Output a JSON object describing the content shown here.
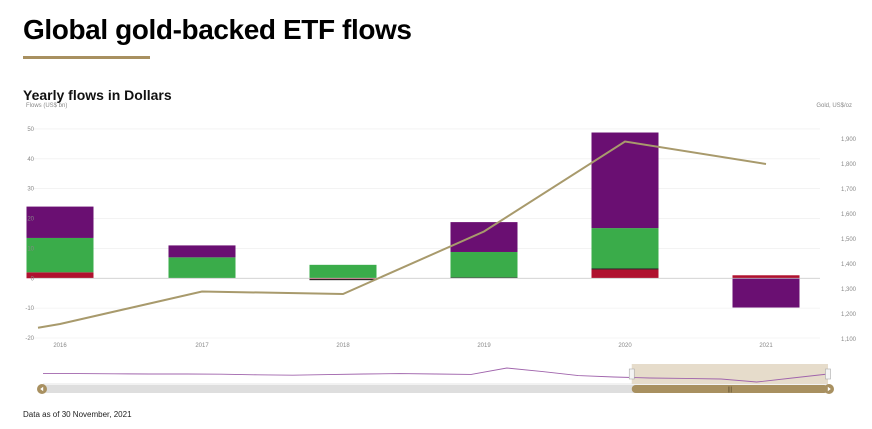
{
  "page": {
    "title": "Global gold-backed ETF flows",
    "subtitle": "Yearly flows in Dollars",
    "left_unit": "Flows (US$ bn)",
    "right_unit": "Gold, US$/oz",
    "footnote": "Data as of 30 November, 2021",
    "accent_color": "#a89060",
    "navigator_handle_label": "|||"
  },
  "chart_data": {
    "type": "bar",
    "stacked": true,
    "categories": [
      "2016",
      "2017",
      "2018",
      "2019",
      "2020",
      "2021"
    ],
    "series": [
      {
        "color": "#b0112f",
        "values": [
          2.0,
          0.0,
          -0.3,
          0.0,
          3.0,
          1.0
        ]
      },
      {
        "color": "#111111",
        "values": [
          0.0,
          0.0,
          -0.3,
          0.3,
          0.3,
          0.0
        ]
      },
      {
        "color": "#3aac4a",
        "values": [
          11.5,
          7.0,
          4.5,
          8.5,
          13.5,
          0.0
        ]
      },
      {
        "color": "#6a0f72",
        "values": [
          10.5,
          4.0,
          0.0,
          10.0,
          32.0,
          -9.8
        ]
      }
    ],
    "line": {
      "color": "#a89a6c",
      "x": [
        "2016 start",
        "2016",
        "2017",
        "2018",
        "2019",
        "2020",
        "2021"
      ],
      "values": [
        1145,
        1160,
        1290,
        1280,
        1530,
        1890,
        1800
      ]
    },
    "y_left": {
      "min": -20,
      "max": 55,
      "ticks": [
        -20,
        -10,
        0,
        10,
        20,
        30,
        40,
        50
      ]
    },
    "y_right": {
      "min": 1100,
      "max": 1900,
      "ticks": [
        1100,
        1200,
        1300,
        1400,
        1500,
        1600,
        1700,
        1800,
        1900
      ],
      "tick_labels": [
        "1,100",
        "1,200",
        "1,300",
        "1,400",
        "1,500",
        "1,600",
        "1,700",
        "1,800",
        "1,900"
      ]
    },
    "grid": true,
    "legend": "none"
  },
  "navigator": {
    "selected_from": 0.75,
    "selected_to": 1.0,
    "trend": [
      0.52,
      0.52,
      0.51,
      0.5,
      0.5,
      0.49,
      0.46,
      0.44,
      0.47,
      0.5,
      0.52,
      0.5,
      0.48,
      0.8,
      0.62,
      0.42,
      0.35,
      0.3,
      0.28,
      0.25,
      0.1,
      0.3,
      0.5
    ]
  }
}
